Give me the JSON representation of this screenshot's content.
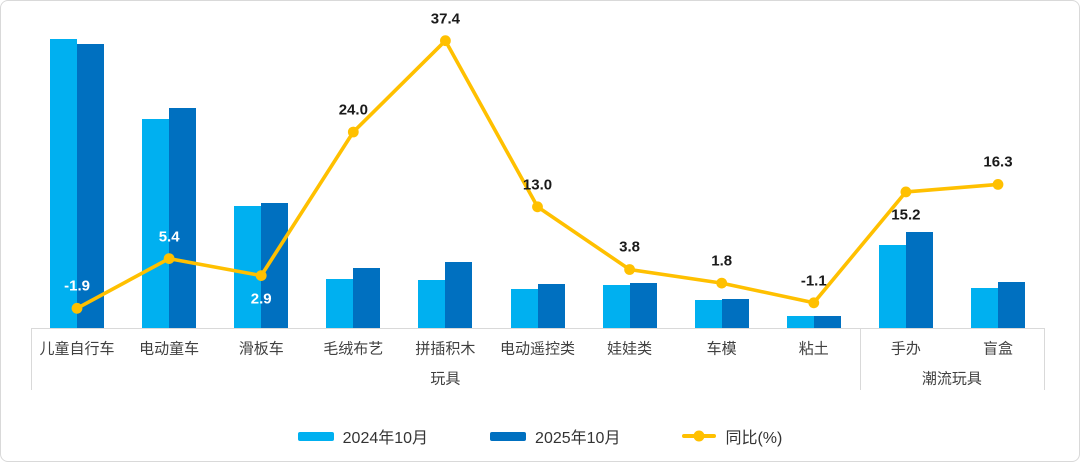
{
  "chart_data": {
    "type": "bar",
    "subtype": "grouped-bars-with-line",
    "categories": [
      "儿童自行车",
      "电动童车",
      "滑板车",
      "毛绒布艺",
      "拼插积木",
      "电动遥控类",
      "娃娃类",
      "车模",
      "粘土",
      "手办",
      "盲盒"
    ],
    "category_groups": [
      {
        "label": "玩具",
        "start": 0,
        "end": 8
      },
      {
        "label": "潮流玩具",
        "start": 9,
        "end": 10
      }
    ],
    "series": [
      {
        "name": "2024年10月",
        "type": "bar",
        "color": "#00B0F0",
        "values": [
          100,
          72.3,
          42.2,
          16.8,
          16.7,
          13.5,
          14.9,
          9.7,
          4.3,
          28.7,
          13.8
        ],
        "note": "bar axis unlabeled; values are relative units, tallest bar = 100"
      },
      {
        "name": "2025年10月",
        "type": "bar",
        "color": "#0070C0",
        "values": [
          98.1,
          76.2,
          43.4,
          20.8,
          22.9,
          15.3,
          15.5,
          9.9,
          4.3,
          33.1,
          16.0
        ]
      },
      {
        "name": "同比(%)",
        "type": "line",
        "color": "#FFC000",
        "values": [
          -1.9,
          5.4,
          2.9,
          24.0,
          37.4,
          13.0,
          3.8,
          1.8,
          -1.1,
          15.2,
          16.3
        ]
      }
    ],
    "line_labels": {
      "values": [
        "-1.9",
        "5.4",
        "2.9",
        "24.0",
        "37.4",
        "13.0",
        "3.8",
        "1.8",
        "-1.1",
        "15.2",
        "16.3"
      ],
      "below_indices": [
        2,
        9
      ],
      "white_indices": [
        0,
        1,
        2
      ]
    },
    "title": "",
    "xlabel": "",
    "ylabel": "",
    "bar_axis": {
      "min": 0,
      "max": 100,
      "visible": false
    },
    "line_axis": {
      "min": -4.8,
      "max": 41,
      "visible": false
    },
    "grid": false,
    "legend_position": "bottom",
    "axis_line_color": "#d9d9d9",
    "label_text_color": "#404040"
  },
  "legend": {
    "item_2024": "2024年10月",
    "item_2025": "2025年10月",
    "item_yoy": "同比(%)"
  }
}
